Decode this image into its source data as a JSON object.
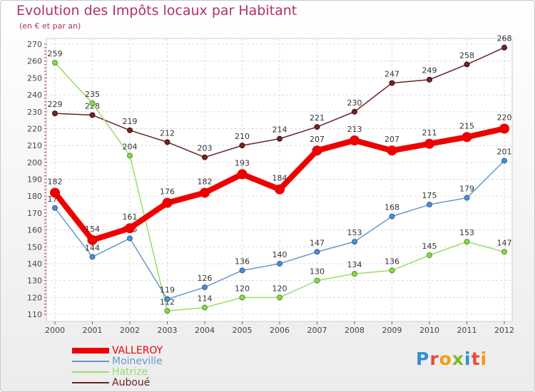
{
  "chart_data": {
    "type": "line",
    "title": "Evolution des Impôts locaux par Habitant",
    "subtitle": "(en € et par an)",
    "x": [
      "2000",
      "2001",
      "2002",
      "2003",
      "2004",
      "2005",
      "2006",
      "2007",
      "2008",
      "2009",
      "2010",
      "2011",
      "2012"
    ],
    "ylim": [
      110,
      270
    ],
    "yticks": [
      110,
      120,
      130,
      140,
      150,
      160,
      170,
      180,
      190,
      200,
      210,
      220,
      230,
      240,
      250,
      260,
      270
    ],
    "grid": true,
    "legend_position": "bottom-left",
    "series": [
      {
        "name": "VALLEROY",
        "color": "#ee0000",
        "values": [
          182,
          154,
          161,
          176,
          182,
          193,
          184,
          207,
          213,
          207,
          211,
          215,
          220
        ]
      },
      {
        "name": "Moineville",
        "color": "#6699cc",
        "values": [
          173,
          144,
          155,
          119,
          126,
          136,
          140,
          147,
          153,
          168,
          175,
          179,
          201
        ]
      },
      {
        "name": "Hatrize",
        "color": "#99dd66",
        "values": [
          259,
          235,
          204,
          112,
          114,
          120,
          120,
          130,
          134,
          136,
          145,
          153,
          147
        ]
      },
      {
        "name": "Auboué",
        "color": "#6b2222",
        "values": [
          229,
          228,
          219,
          212,
          203,
          210,
          214,
          221,
          230,
          247,
          249,
          258,
          268
        ]
      }
    ]
  },
  "logo": {
    "letters": [
      "P",
      "r",
      "o",
      "x",
      "i",
      "t",
      "i"
    ]
  }
}
